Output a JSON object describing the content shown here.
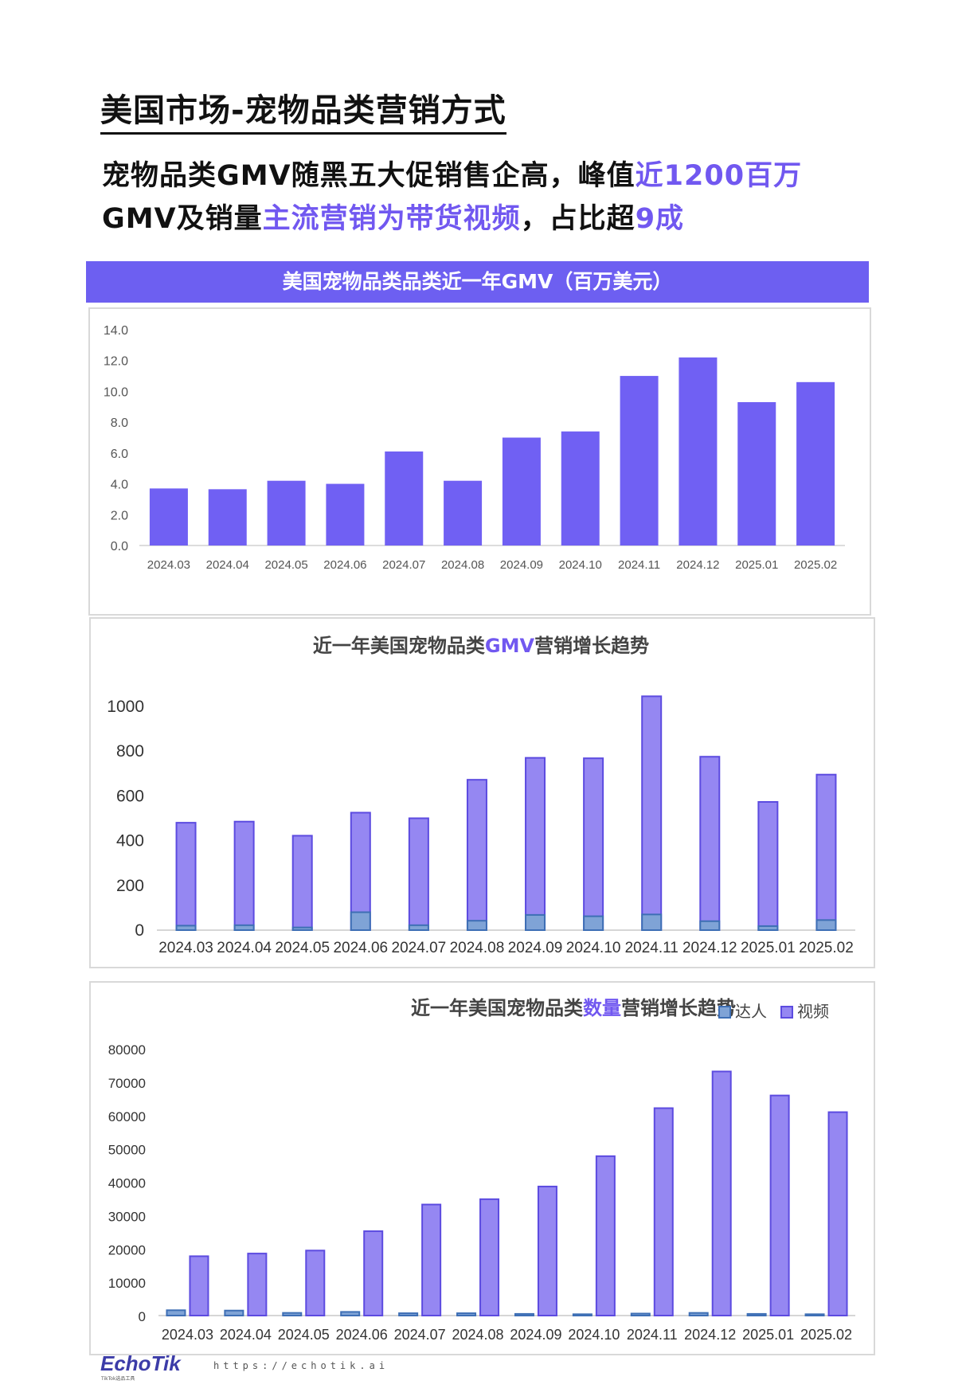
{
  "page": {
    "title": "美国市场-宠物品类营销方式",
    "headline_line1_prefix": "宠物品类GMV随黑五大促销售企高，峰值",
    "headline_line1_highlight": "近1200百万",
    "headline_line2_prefix": "GMV及销量",
    "headline_line2_highlight": "主流营销为带货视频",
    "headline_line2_mid": "，占比超",
    "headline_line2_highlight2": "9成"
  },
  "colors": {
    "primary": "#7158f0",
    "banner": "#6d5ff1",
    "bar_gmv": "#7060f3",
    "video_fill": "#9587f2",
    "video_stroke": "#5c4be0",
    "influencer_fill": "#7fa3d6",
    "influencer_stroke": "#3e6fb5"
  },
  "chart_data": [
    {
      "type": "bar",
      "title": "美国宠物品类品类近一年GMV（百万美元）",
      "categories": [
        "2024.03",
        "2024.04",
        "2024.05",
        "2024.06",
        "2024.07",
        "2024.08",
        "2024.09",
        "2024.10",
        "2024.11",
        "2024.12",
        "2025.01",
        "2025.02"
      ],
      "values": [
        3.7,
        3.65,
        4.2,
        4.0,
        6.1,
        4.2,
        7.0,
        7.4,
        11.0,
        12.2,
        9.3,
        10.6
      ],
      "ylim": [
        0,
        14
      ],
      "yticks": [
        "0.0",
        "2.0",
        "4.0",
        "6.0",
        "8.0",
        "10.0",
        "12.0",
        "14.0"
      ],
      "grid": false
    },
    {
      "type": "bar",
      "title_prefix": "近一年美国宠物品类",
      "title_highlight": "GMV",
      "title_suffix": "营销增长趋势",
      "categories": [
        "2024.03",
        "2024.04",
        "2024.05",
        "2024.06",
        "2024.07",
        "2024.08",
        "2024.09",
        "2024.10",
        "2024.11",
        "2024.12",
        "2025.01",
        "2025.02"
      ],
      "series": [
        {
          "name": "达人",
          "values": [
            20,
            22,
            12,
            80,
            22,
            42,
            68,
            62,
            70,
            40,
            18,
            45
          ]
        },
        {
          "name": "视频",
          "values": [
            480,
            485,
            422,
            525,
            500,
            672,
            770,
            768,
            1045,
            775,
            573,
            695
          ]
        }
      ],
      "ylim": [
        0,
        1000
      ],
      "yticks": [
        "0",
        "200",
        "400",
        "600",
        "800",
        "1000"
      ],
      "grid": false
    },
    {
      "type": "bar",
      "title_prefix": "近一年美国宠物品类",
      "title_highlight": "数量",
      "title_suffix": "营销增长趋势",
      "categories": [
        "2024.03",
        "2024.04",
        "2024.05",
        "2024.06",
        "2024.07",
        "2024.08",
        "2024.09",
        "2024.10",
        "2024.11",
        "2024.12",
        "2025.01",
        "2025.02"
      ],
      "series": [
        {
          "name": "达人",
          "values": [
            1600,
            1500,
            800,
            1100,
            700,
            700,
            500,
            400,
            600,
            800,
            500,
            400
          ]
        },
        {
          "name": "视频",
          "values": [
            17800,
            18600,
            19500,
            25300,
            33300,
            34900,
            38700,
            47800,
            62200,
            73200,
            66000,
            61000
          ]
        }
      ],
      "ylim": [
        0,
        80000
      ],
      "yticks": [
        "0",
        "10000",
        "20000",
        "30000",
        "40000",
        "50000",
        "60000",
        "70000",
        "80000"
      ],
      "legend_position": "top-right",
      "grid": false
    }
  ],
  "footer": {
    "logo": "EchoTik",
    "logo_sub": "TikTok选品工具",
    "url": "https://echotik.ai"
  }
}
